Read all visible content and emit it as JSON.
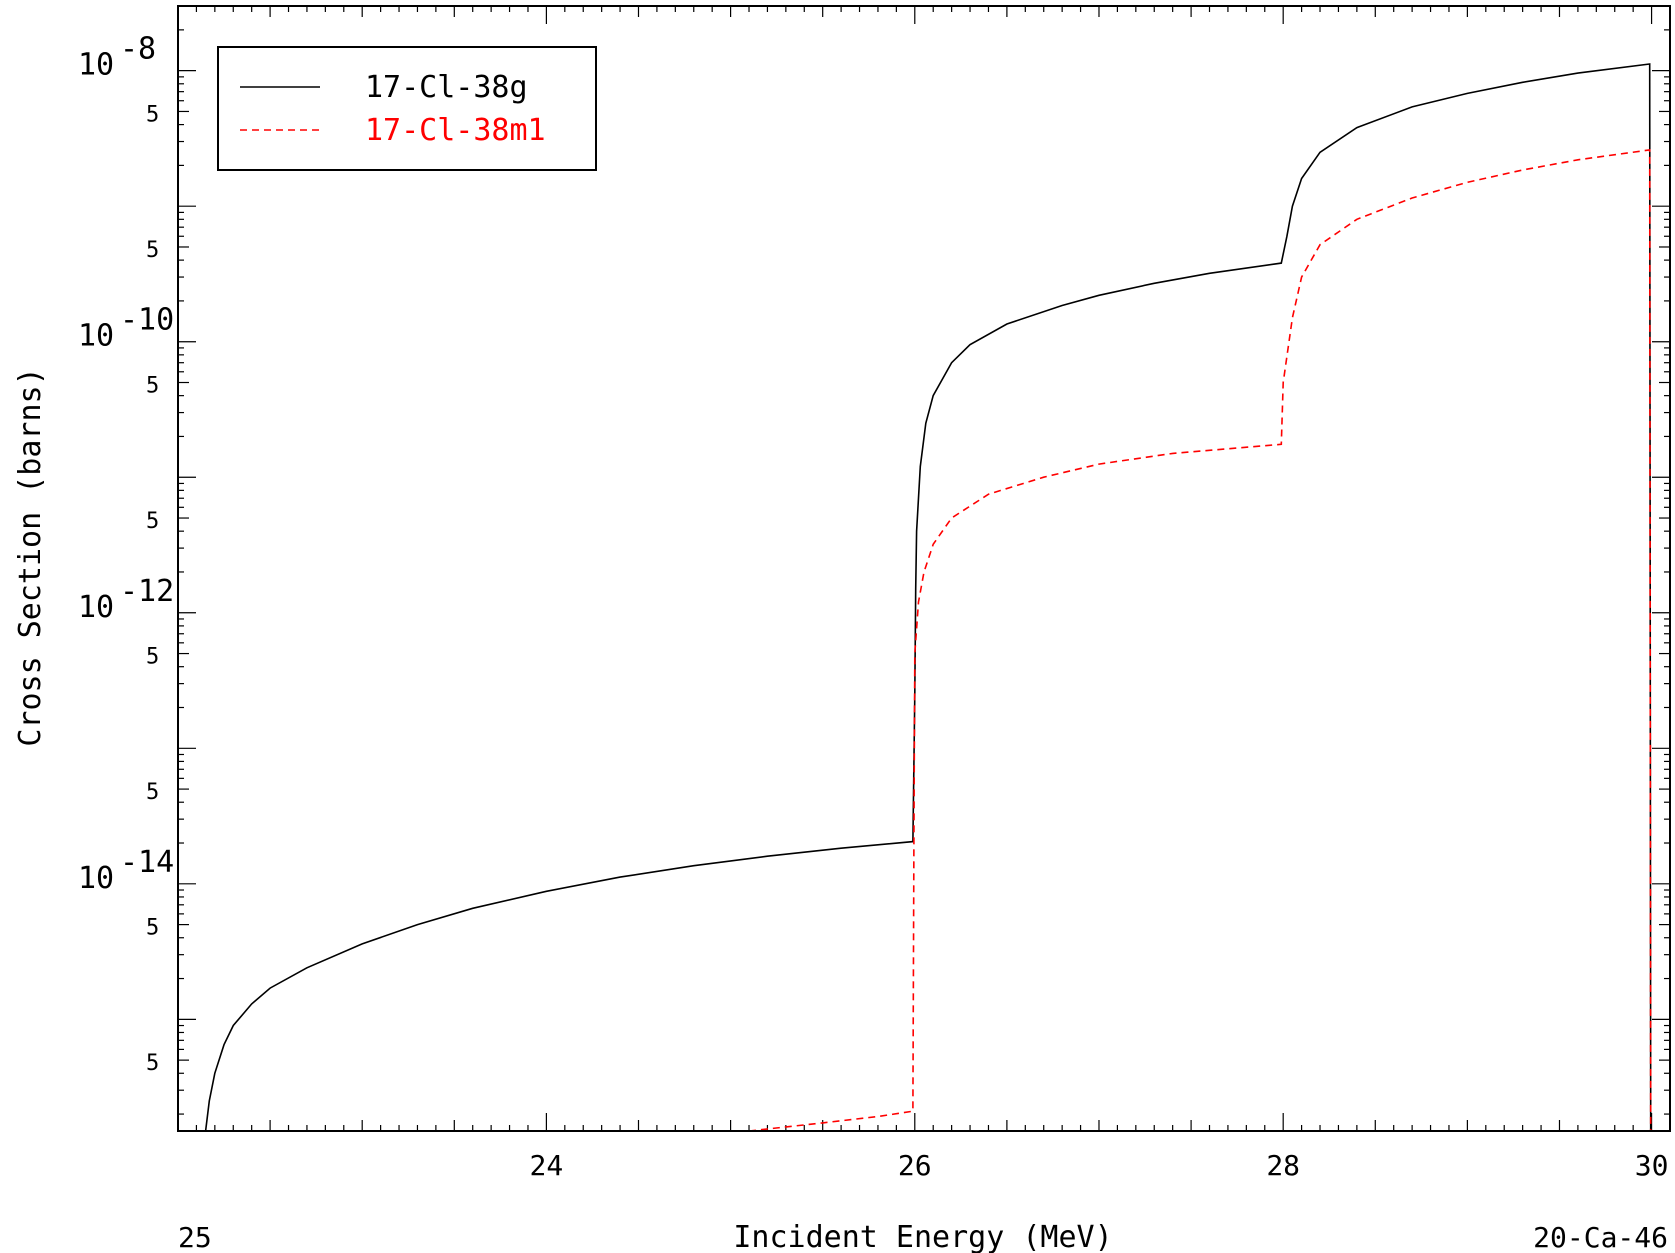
{
  "chart_data": {
    "type": "line",
    "xlabel": "Incident Energy (MeV)",
    "ylabel": "Cross Section (barns)",
    "footer_left": "25",
    "footer_right": "20-Ca-46",
    "xlim": [
      22.0,
      30.1
    ],
    "ylim": [
      1.5e-16,
      3e-08
    ],
    "y_scale": "log",
    "x_ticks": [
      {
        "value": 24,
        "label": "24"
      },
      {
        "value": 26,
        "label": "26"
      },
      {
        "value": 28,
        "label": "28"
      },
      {
        "value": 30,
        "label": "30"
      }
    ],
    "y_decade_labels": [
      {
        "exp": -8,
        "base": "10",
        "sup": "-8"
      },
      {
        "exp": -10,
        "base": "10",
        "sup": "-10"
      },
      {
        "exp": -12,
        "base": "10",
        "sup": "-12"
      },
      {
        "exp": -14,
        "base": "10",
        "sup": "-14"
      }
    ],
    "y_five_label": "5",
    "legend": {
      "placement": "top-left"
    },
    "grid": false,
    "series": [
      {
        "name": "17-Cl-38g",
        "color": "#000000",
        "dash": "solid",
        "points": [
          [
            22.15,
            1.5e-16
          ],
          [
            22.17,
            2.5e-16
          ],
          [
            22.2,
            4e-16
          ],
          [
            22.25,
            6.5e-16
          ],
          [
            22.3,
            9e-16
          ],
          [
            22.4,
            1.3e-15
          ],
          [
            22.5,
            1.7e-15
          ],
          [
            22.7,
            2.4e-15
          ],
          [
            23.0,
            3.6e-15
          ],
          [
            23.3,
            5e-15
          ],
          [
            23.6,
            6.6e-15
          ],
          [
            24.0,
            8.8e-15
          ],
          [
            24.4,
            1.12e-14
          ],
          [
            24.8,
            1.36e-14
          ],
          [
            25.2,
            1.6e-14
          ],
          [
            25.6,
            1.83e-14
          ],
          [
            25.99,
            2.05e-14
          ],
          [
            26.0,
            2.5e-13
          ],
          [
            26.005,
            1.5e-12
          ],
          [
            26.01,
            4e-12
          ],
          [
            26.03,
            1.2e-11
          ],
          [
            26.06,
            2.5e-11
          ],
          [
            26.1,
            4e-11
          ],
          [
            26.2,
            7e-11
          ],
          [
            26.3,
            9.5e-11
          ],
          [
            26.5,
            1.35e-10
          ],
          [
            26.8,
            1.85e-10
          ],
          [
            27.0,
            2.2e-10
          ],
          [
            27.3,
            2.7e-10
          ],
          [
            27.6,
            3.2e-10
          ],
          [
            27.99,
            3.8e-10
          ],
          [
            28.02,
            6e-10
          ],
          [
            28.05,
            1e-09
          ],
          [
            28.1,
            1.6e-09
          ],
          [
            28.2,
            2.5e-09
          ],
          [
            28.4,
            3.8e-09
          ],
          [
            28.7,
            5.4e-09
          ],
          [
            29.0,
            6.8e-09
          ],
          [
            29.3,
            8.2e-09
          ],
          [
            29.6,
            9.6e-09
          ],
          [
            29.99,
            1.12e-08
          ],
          [
            29.995,
            1.5e-16
          ]
        ]
      },
      {
        "name": "17-Cl-38m1",
        "color": "#ff0000",
        "dash": "dashed",
        "points": [
          [
            25.1,
            1.5e-16
          ],
          [
            25.5,
            1.72e-16
          ],
          [
            25.8,
            1.92e-16
          ],
          [
            25.99,
            2.1e-16
          ],
          [
            25.995,
            2e-14
          ],
          [
            26.0,
            5e-13
          ],
          [
            26.02,
            1.2e-12
          ],
          [
            26.05,
            2e-12
          ],
          [
            26.1,
            3.2e-12
          ],
          [
            26.2,
            5e-12
          ],
          [
            26.4,
            7.5e-12
          ],
          [
            26.7,
            1e-11
          ],
          [
            27.0,
            1.25e-11
          ],
          [
            27.4,
            1.5e-11
          ],
          [
            27.99,
            1.75e-11
          ],
          [
            28.0,
            5e-11
          ],
          [
            28.05,
            1.5e-10
          ],
          [
            28.1,
            3e-10
          ],
          [
            28.2,
            5.2e-10
          ],
          [
            28.4,
            8e-10
          ],
          [
            28.7,
            1.15e-09
          ],
          [
            29.0,
            1.5e-09
          ],
          [
            29.3,
            1.85e-09
          ],
          [
            29.6,
            2.2e-09
          ],
          [
            29.99,
            2.6e-09
          ],
          [
            29.995,
            1.5e-16
          ]
        ]
      }
    ]
  }
}
